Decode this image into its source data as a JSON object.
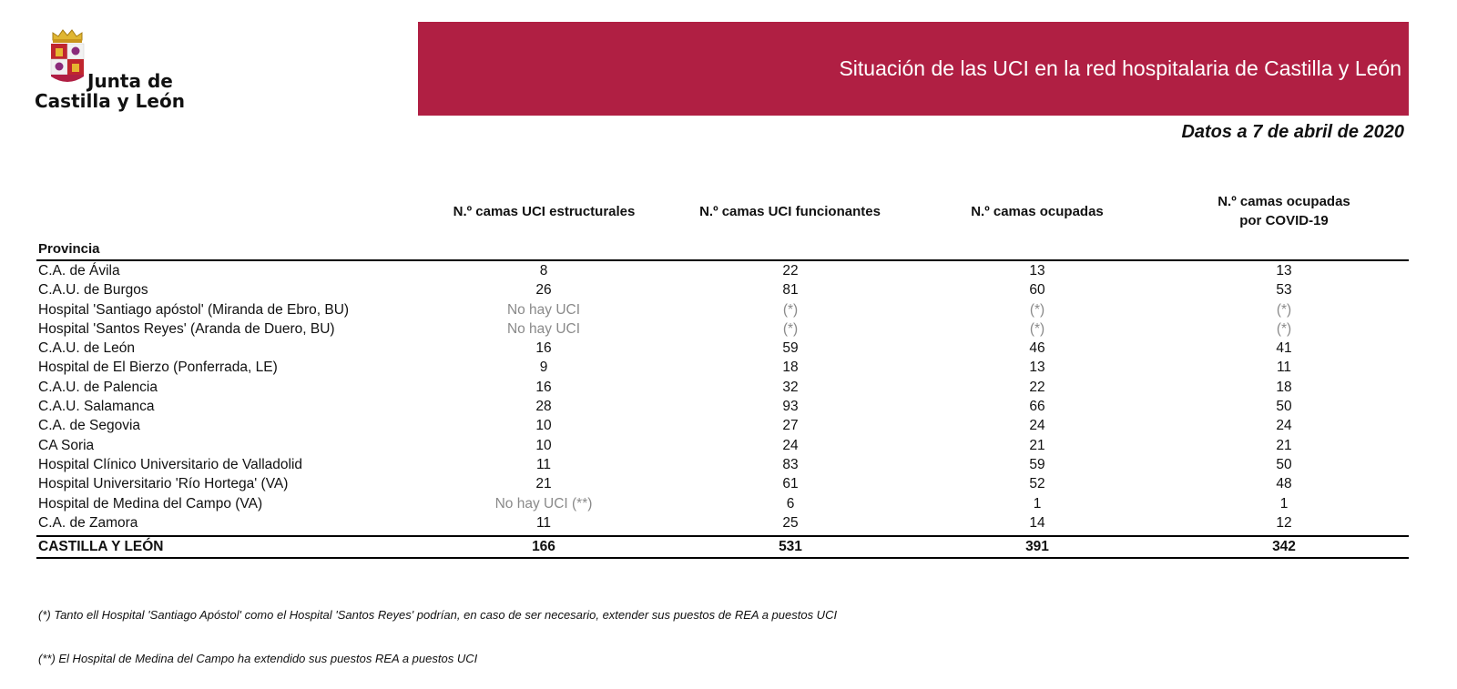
{
  "logo": {
    "line1": "Junta de",
    "line2": "Castilla y León"
  },
  "banner": {
    "title": "Situación de las UCI en la red hospitalaria de Castilla y León"
  },
  "subtitle": "Datos a 7 de abril de 2020",
  "headers": {
    "province": "Provincia",
    "col1": "N.º camas UCI estructurales",
    "col2": "N.º camas UCI funcionantes",
    "col3": "N.º camas ocupadas",
    "col4_line1": "N.º camas ocupadas",
    "col4_line2": "por COVID-19"
  },
  "rows": [
    {
      "name": "C.A. de Ávila",
      "c1": "8",
      "c2": "22",
      "c3": "13",
      "c4": "13"
    },
    {
      "name": "C.A.U. de Burgos",
      "c1": "26",
      "c2": "81",
      "c3": "60",
      "c4": "53"
    },
    {
      "name": "Hospital 'Santiago apóstol' (Miranda de Ebro, BU)",
      "c1": "No hay UCI",
      "c2": "(*)",
      "c3": "(*)",
      "c4": "(*)"
    },
    {
      "name": "Hospital 'Santos Reyes' (Aranda de Duero, BU)",
      "c1": "No hay UCI",
      "c2": "(*)",
      "c3": "(*)",
      "c4": "(*)"
    },
    {
      "name": "C.A.U. de León",
      "c1": "16",
      "c2": "59",
      "c3": "46",
      "c4": "41"
    },
    {
      "name": "Hospital de El Bierzo (Ponferrada, LE)",
      "c1": "9",
      "c2": "18",
      "c3": "13",
      "c4": "11"
    },
    {
      "name": "C.A.U. de Palencia",
      "c1": "16",
      "c2": "32",
      "c3": "22",
      "c4": "18"
    },
    {
      "name": "C.A.U. Salamanca",
      "c1": "28",
      "c2": "93",
      "c3": "66",
      "c4": "50"
    },
    {
      "name": "C.A. de Segovia",
      "c1": "10",
      "c2": "27",
      "c3": "24",
      "c4": "24"
    },
    {
      "name": "CA Soria",
      "c1": "10",
      "c2": "24",
      "c3": "21",
      "c4": "21"
    },
    {
      "name": "Hospital Clínico Universitario de Valladolid",
      "c1": "11",
      "c2": "83",
      "c3": "59",
      "c4": "50"
    },
    {
      "name": "Hospital Universitario 'Río Hortega' (VA)",
      "c1": "21",
      "c2": "61",
      "c3": "52",
      "c4": "48"
    },
    {
      "name": "Hospital de Medina del Campo (VA)",
      "c1": "No hay UCI (**)",
      "c2": "6",
      "c3": "1",
      "c4": "1"
    },
    {
      "name": "C.A. de Zamora",
      "c1": "11",
      "c2": "25",
      "c3": "14",
      "c4": "12"
    }
  ],
  "total": {
    "name": "CASTILLA Y LEÓN",
    "c1": "166",
    "c2": "531",
    "c3": "391",
    "c4": "342"
  },
  "notes": [
    "(*) Tanto ell Hospital 'Santiago Apóstol' como el Hospital 'Santos Reyes' podrían, en caso de ser necesario, extender sus puestos de REA a puestos UCI",
    "(**) El Hospital de Medina del Campo ha extendido sus puestos REA a puestos UCI"
  ]
}
